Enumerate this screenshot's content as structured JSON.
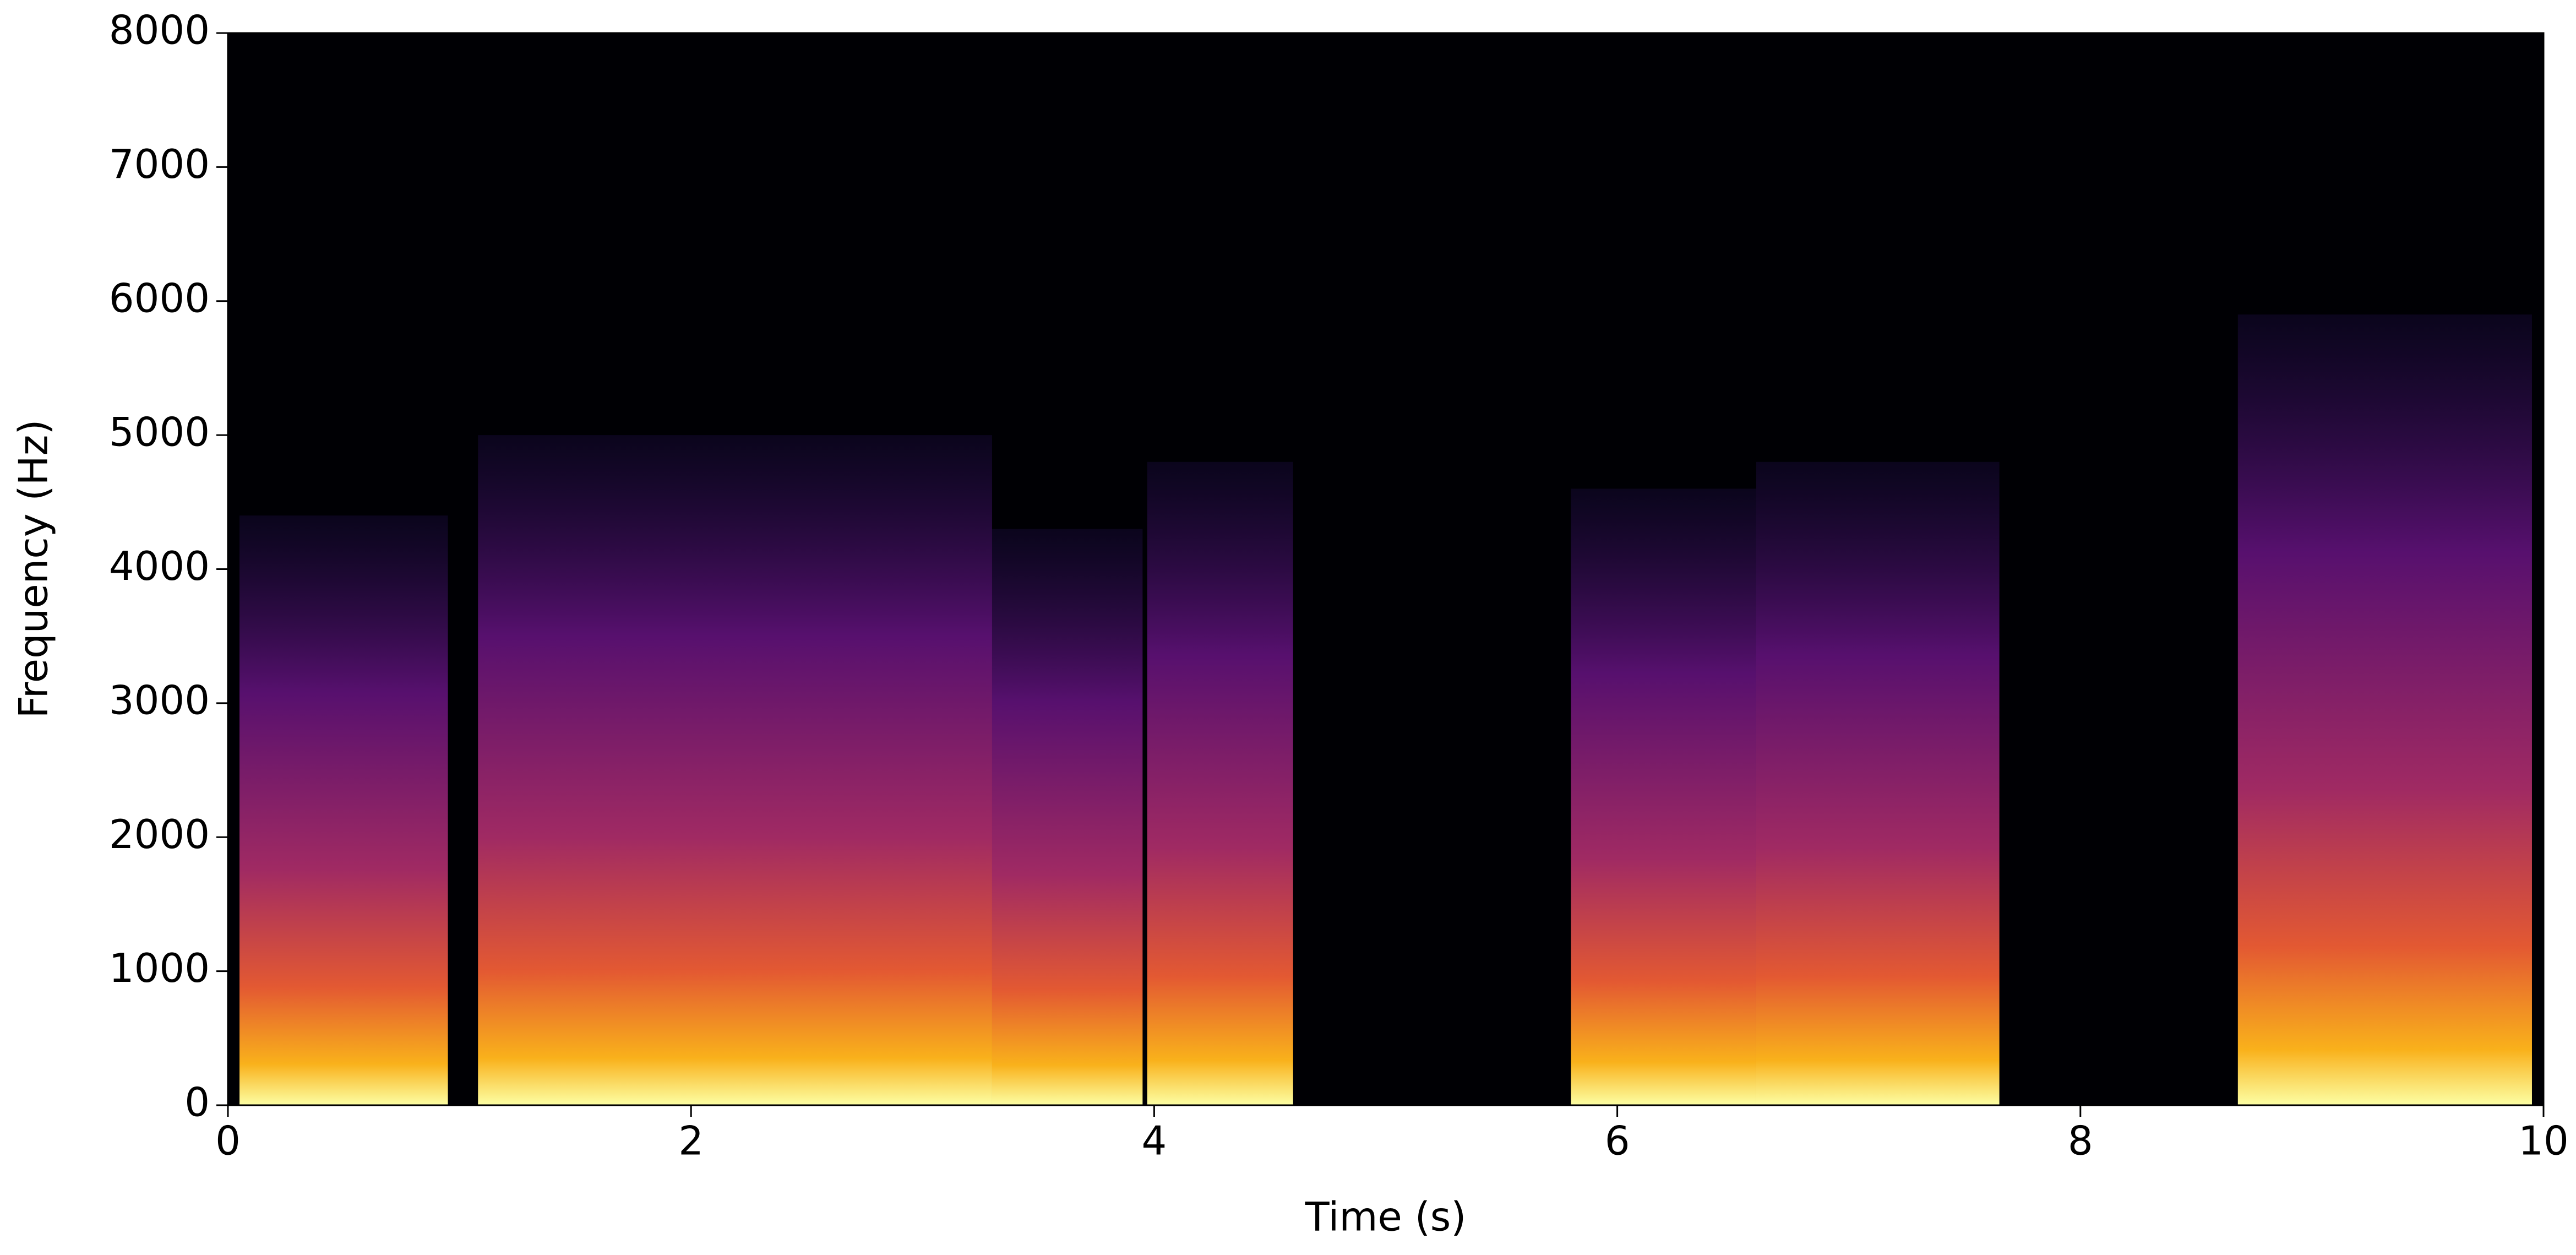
{
  "chart_data": {
    "type": "spectrogram",
    "x_label": "Time (s)",
    "y_label": "Frequency (Hz)",
    "xlim": [
      0,
      10
    ],
    "ylim": [
      0,
      8000
    ],
    "xticks": [
      0,
      2,
      4,
      6,
      8,
      10
    ],
    "yticks": [
      0,
      1000,
      2000,
      3000,
      4000,
      5000,
      6000,
      7000,
      8000
    ],
    "x": [
      [
        0.05,
        0.95
      ],
      [
        1.08,
        3.3
      ],
      [
        3.3,
        3.95
      ],
      [
        3.97,
        4.6
      ],
      [
        5.8,
        6.6
      ],
      [
        6.6,
        7.65
      ],
      [
        8.68,
        9.95
      ]
    ],
    "values": [
      4400,
      5000,
      4300,
      4800,
      4600,
      4800,
      5900
    ]
  }
}
